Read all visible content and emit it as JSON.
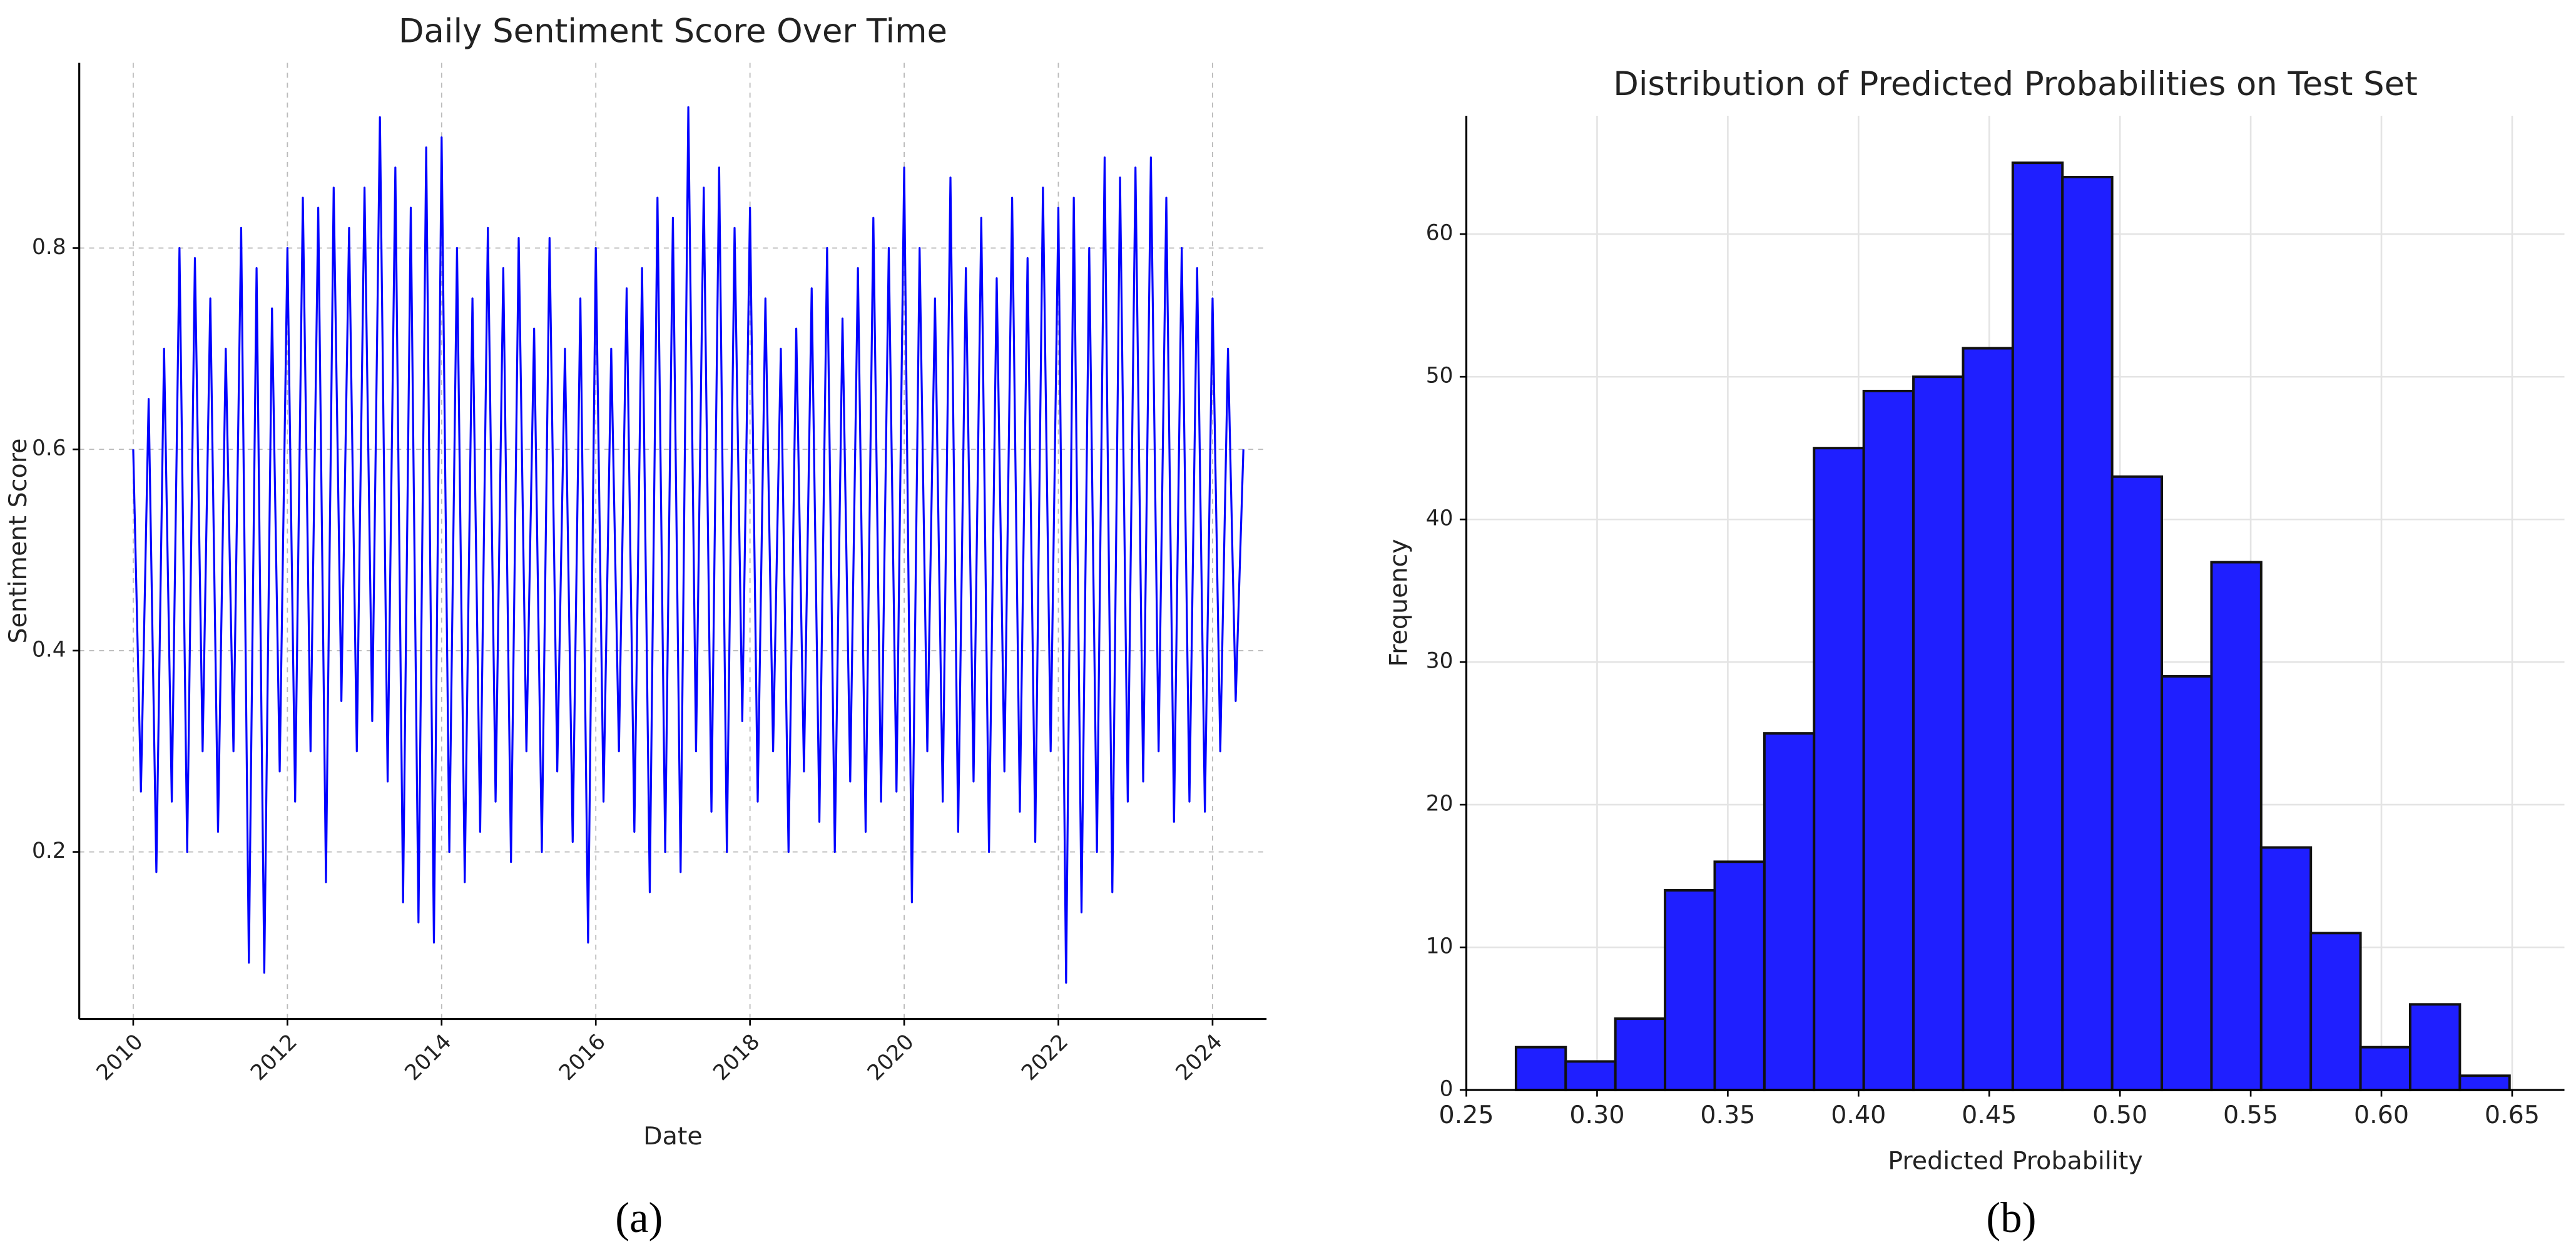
{
  "chart_data": [
    {
      "type": "line",
      "title": "Daily Sentiment Score Over Time",
      "xlabel": "Date",
      "ylabel": "Sentiment Score",
      "caption": "(a)",
      "x": [
        2010.0,
        2010.1,
        2010.2,
        2010.3,
        2010.4,
        2010.5,
        2010.6,
        2010.7,
        2010.8,
        2010.9,
        2011.0,
        2011.1,
        2011.2,
        2011.3,
        2011.4,
        2011.5,
        2011.6,
        2011.7,
        2011.8,
        2011.9,
        2012.0,
        2012.1,
        2012.2,
        2012.3,
        2012.4,
        2012.5,
        2012.6,
        2012.7,
        2012.8,
        2012.9,
        2013.0,
        2013.1,
        2013.2,
        2013.3,
        2013.4,
        2013.5,
        2013.6,
        2013.7,
        2013.8,
        2013.9,
        2014.0,
        2014.1,
        2014.2,
        2014.3,
        2014.4,
        2014.5,
        2014.6,
        2014.7,
        2014.8,
        2014.9,
        2015.0,
        2015.1,
        2015.2,
        2015.3,
        2015.4,
        2015.5,
        2015.6,
        2015.7,
        2015.8,
        2015.9,
        2016.0,
        2016.1,
        2016.2,
        2016.3,
        2016.4,
        2016.5,
        2016.6,
        2016.7,
        2016.8,
        2016.9,
        2017.0,
        2017.1,
        2017.2,
        2017.3,
        2017.4,
        2017.5,
        2017.6,
        2017.7,
        2017.8,
        2017.9,
        2018.0,
        2018.1,
        2018.2,
        2018.3,
        2018.4,
        2018.5,
        2018.6,
        2018.7,
        2018.8,
        2018.9,
        2019.0,
        2019.1,
        2019.2,
        2019.3,
        2019.4,
        2019.5,
        2019.6,
        2019.7,
        2019.8,
        2019.9,
        2020.0,
        2020.1,
        2020.2,
        2020.3,
        2020.4,
        2020.5,
        2020.6,
        2020.7,
        2020.8,
        2020.9,
        2021.0,
        2021.1,
        2021.2,
        2021.3,
        2021.4,
        2021.5,
        2021.6,
        2021.7,
        2021.8,
        2021.9,
        2022.0,
        2022.1,
        2022.2,
        2022.3,
        2022.4,
        2022.5,
        2022.6,
        2022.7,
        2022.8,
        2022.9,
        2023.0,
        2023.1,
        2023.2,
        2023.3,
        2023.4,
        2023.5,
        2023.6,
        2023.7,
        2023.8,
        2023.9,
        2024.0,
        2024.1,
        2024.2,
        2024.3,
        2024.4
      ],
      "series": [
        {
          "name": "Sentiment Score",
          "color": "#0000ff",
          "values": [
            0.6,
            0.26,
            0.65,
            0.18,
            0.7,
            0.25,
            0.8,
            0.2,
            0.79,
            0.3,
            0.75,
            0.22,
            0.7,
            0.3,
            0.82,
            0.09,
            0.78,
            0.08,
            0.74,
            0.28,
            0.8,
            0.25,
            0.85,
            0.3,
            0.84,
            0.17,
            0.86,
            0.35,
            0.82,
            0.3,
            0.86,
            0.33,
            0.93,
            0.27,
            0.88,
            0.15,
            0.84,
            0.13,
            0.9,
            0.11,
            0.91,
            0.2,
            0.8,
            0.17,
            0.75,
            0.22,
            0.82,
            0.25,
            0.78,
            0.19,
            0.81,
            0.3,
            0.72,
            0.2,
            0.81,
            0.28,
            0.7,
            0.21,
            0.75,
            0.11,
            0.8,
            0.25,
            0.7,
            0.3,
            0.76,
            0.22,
            0.78,
            0.16,
            0.85,
            0.2,
            0.83,
            0.18,
            0.94,
            0.3,
            0.86,
            0.24,
            0.88,
            0.2,
            0.82,
            0.33,
            0.84,
            0.25,
            0.75,
            0.3,
            0.7,
            0.2,
            0.72,
            0.28,
            0.76,
            0.23,
            0.8,
            0.2,
            0.73,
            0.27,
            0.78,
            0.22,
            0.83,
            0.25,
            0.8,
            0.26,
            0.88,
            0.15,
            0.8,
            0.3,
            0.75,
            0.25,
            0.87,
            0.22,
            0.78,
            0.27,
            0.83,
            0.2,
            0.77,
            0.28,
            0.85,
            0.24,
            0.79,
            0.21,
            0.86,
            0.3,
            0.84,
            0.07,
            0.85,
            0.14,
            0.8,
            0.2,
            0.89,
            0.16,
            0.87,
            0.25,
            0.88,
            0.27,
            0.89,
            0.3,
            0.85,
            0.23,
            0.8,
            0.25,
            0.78,
            0.24,
            0.75,
            0.3,
            0.7,
            0.35,
            0.6
          ]
        }
      ],
      "xlim": [
        2009.3,
        2024.7
      ],
      "xticks": [
        2010,
        2012,
        2014,
        2016,
        2018,
        2020,
        2022,
        2024
      ],
      "ylim": [
        0.034,
        0.984
      ],
      "yticks": [
        0.2,
        0.4,
        0.6,
        0.8
      ],
      "grid": true
    },
    {
      "type": "histogram",
      "title": "Distribution of Predicted Probabilities on Test Set",
      "xlabel": "Predicted Probability",
      "ylabel": "Frequency",
      "caption": "(b)",
      "bins": [
        0.269,
        0.288,
        0.307,
        0.326,
        0.345,
        0.364,
        0.383,
        0.402,
        0.421,
        0.44,
        0.459,
        0.478,
        0.497,
        0.516,
        0.535,
        0.554,
        0.573,
        0.592,
        0.611,
        0.63,
        0.649
      ],
      "counts": [
        3,
        2,
        5,
        14,
        16,
        25,
        45,
        49,
        50,
        52,
        65,
        64,
        43,
        29,
        37,
        17,
        11,
        3,
        6,
        1
      ],
      "color": "#1f1fff",
      "xlim": [
        0.25,
        0.67
      ],
      "xticks": [
        0.25,
        {
          "value": 0.3,
          "label": "0.30"
        },
        0.35,
        {
          "value": 0.4,
          "label": "0.40"
        },
        0.45,
        {
          "value": 0.5,
          "label": "0.50"
        },
        0.55,
        {
          "value": 0.6,
          "label": "0.60"
        },
        0.65
      ],
      "ylim": [
        0,
        68.3
      ],
      "yticks": [
        0,
        10,
        20,
        30,
        40,
        50,
        60
      ],
      "grid": true
    }
  ]
}
